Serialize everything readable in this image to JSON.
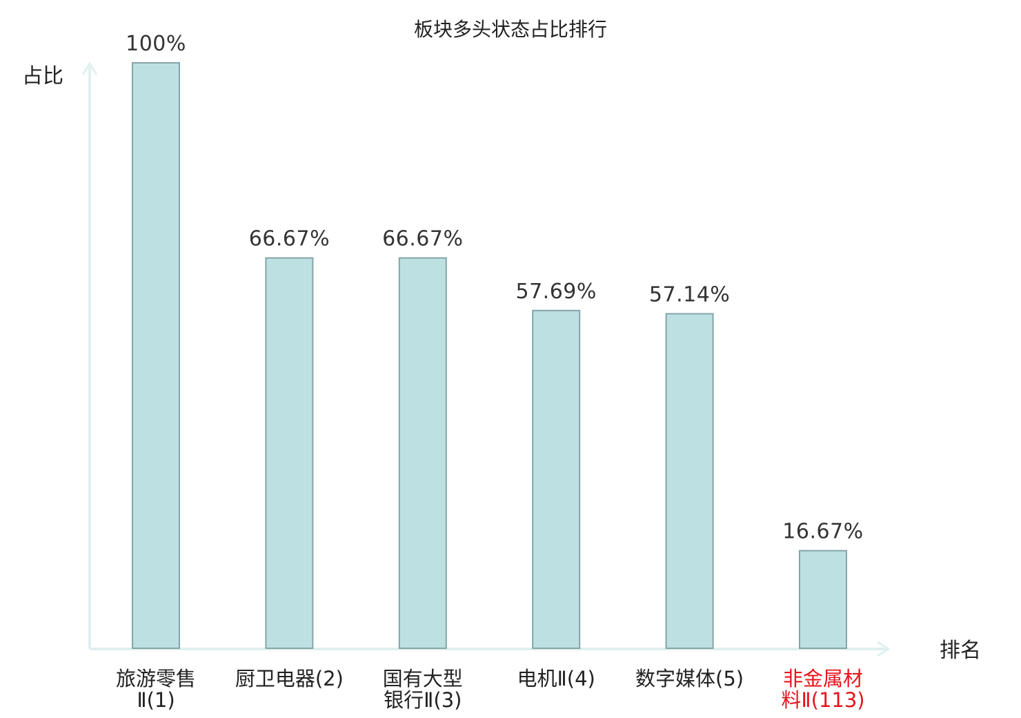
{
  "chart_data": {
    "type": "bar",
    "title": "板块多头状态占比排行",
    "ylabel": "占比",
    "xlabel": "排名",
    "ylim": [
      0,
      100
    ],
    "grid": false,
    "categories": [
      {
        "name": "旅游零售",
        "rank": "Ⅱ(1)",
        "lines": [
          "旅游零售",
          "Ⅱ(1)"
        ],
        "highlight": false
      },
      {
        "name": "厨卫电器",
        "rank": "(2)",
        "lines": [
          "厨卫电器(2)"
        ],
        "highlight": false
      },
      {
        "name": "国有大型银行",
        "rank": "Ⅱ(3)",
        "lines": [
          "国有大型",
          "银行Ⅱ(3)"
        ],
        "highlight": false
      },
      {
        "name": "电机",
        "rank": "Ⅱ(4)",
        "lines": [
          "电机Ⅱ(4)"
        ],
        "highlight": false
      },
      {
        "name": "数字媒体",
        "rank": "(5)",
        "lines": [
          "数字媒体(5)"
        ],
        "highlight": false
      },
      {
        "name": "非金属材料",
        "rank": "Ⅱ(113)",
        "lines": [
          "非金属材",
          "料Ⅱ(113)"
        ],
        "highlight": true
      }
    ],
    "values": [
      100,
      66.67,
      66.67,
      57.69,
      57.14,
      16.67
    ],
    "value_labels": [
      "100%",
      "66.67%",
      "66.67%",
      "57.69%",
      "57.14%",
      "16.67%"
    ],
    "colors": {
      "bar_fill": "#bde0e2",
      "bar_stroke": "#84a4a8",
      "axis": "#dff0ee",
      "text": "#222222",
      "value_text": "#333333",
      "highlight": "#e8141c"
    }
  }
}
